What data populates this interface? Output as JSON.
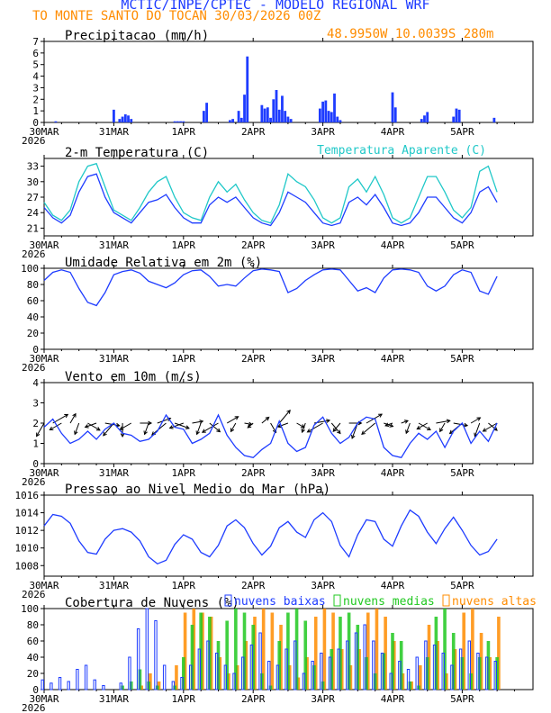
{
  "header": {
    "title": "MCTIC/INPE/CPTEC - MODELO REGIONAL WRF",
    "subtitle": "TO MONTE SANTO DO TOCAN   30/03/2026 00Z",
    "coords": "48.9950W 10.0039S 280m"
  },
  "time_axis": {
    "labels": [
      "30MAR",
      "31MAR",
      "1APR",
      "2APR",
      "3APR",
      "4APR",
      "5APR"
    ],
    "year": "2026",
    "hours_total": 156
  },
  "colors": {
    "blue": "#1e3cff",
    "cyan": "#20c8c8",
    "orange": "#ff8c00",
    "green": "#20c820",
    "black": "#000000"
  },
  "chart_data": [
    {
      "type": "bar",
      "id": "precip",
      "title": "Precipitacao (mm/h)",
      "ylim": [
        0,
        7
      ],
      "yticks": [
        0,
        1,
        2,
        3,
        4,
        5,
        6,
        7
      ],
      "hours": [
        4,
        24,
        26,
        27,
        28,
        29,
        30,
        45,
        46,
        47,
        48,
        55,
        56,
        64,
        65,
        67,
        68,
        69,
        70,
        75,
        76,
        77,
        78,
        79,
        80,
        81,
        82,
        83,
        84,
        85,
        95,
        96,
        97,
        98,
        99,
        100,
        101,
        102,
        120,
        121,
        130,
        131,
        132,
        141,
        142,
        143,
        155
      ],
      "values": [
        0.1,
        1.1,
        0.3,
        0.5,
        0.7,
        0.6,
        0.3,
        0.1,
        0.1,
        0.1,
        0.1,
        1.0,
        1.7,
        0.2,
        0.3,
        1.0,
        0.4,
        2.4,
        5.7,
        1.5,
        1.2,
        1.3,
        0.4,
        2.0,
        2.8,
        1.1,
        2.3,
        1.0,
        0.5,
        0.3,
        1.2,
        1.8,
        1.9,
        1.0,
        0.9,
        2.5,
        0.5,
        0.2,
        2.6,
        1.3,
        0.3,
        0.6,
        0.9,
        0.5,
        1.2,
        1.1,
        0.4
      ],
      "series_color": "blue"
    },
    {
      "type": "line",
      "id": "temp",
      "title": "2-m Temperatura (C)",
      "title2": "Temperatura Aparente (C)",
      "ylim": [
        19.5,
        34.5
      ],
      "yticks": [
        21,
        24,
        27,
        30,
        33
      ],
      "hours": [
        0,
        3,
        6,
        9,
        12,
        15,
        18,
        21,
        24,
        27,
        30,
        33,
        36,
        39,
        42,
        45,
        48,
        51,
        54,
        57,
        60,
        63,
        66,
        69,
        72,
        75,
        78,
        81,
        84,
        87,
        90,
        93,
        96,
        99,
        102,
        105,
        108,
        111,
        114,
        117,
        120,
        123,
        126,
        129,
        132,
        135,
        138,
        141,
        144,
        147,
        150,
        153,
        156
      ],
      "series": [
        {
          "name": "2-m Temperatura",
          "color": "blue",
          "values": [
            25.0,
            23.0,
            22.0,
            23.5,
            28.0,
            31.0,
            31.5,
            27.0,
            24.0,
            23.0,
            22.0,
            24.0,
            26.0,
            26.5,
            27.5,
            25.0,
            23.0,
            22.0,
            22.0,
            25.5,
            27.0,
            26.0,
            27.0,
            25.0,
            23.0,
            22.0,
            21.5,
            24.0,
            28.0,
            27.0,
            26.0,
            24.0,
            22.0,
            21.5,
            22.0,
            26.0,
            27.0,
            25.5,
            27.5,
            25.0,
            22.0,
            21.5,
            22.0,
            24.0,
            27.0,
            27.0,
            25.0,
            23.0,
            22.0,
            24.0,
            28.0,
            29.0,
            26.0
          ]
        },
        {
          "name": "Temperatura Aparente",
          "color": "cyan",
          "values": [
            26.0,
            23.5,
            22.5,
            24.5,
            30.0,
            33.0,
            33.5,
            29.0,
            24.5,
            23.5,
            22.5,
            25.0,
            28.0,
            30.0,
            31.0,
            27.0,
            24.0,
            23.0,
            22.5,
            27.0,
            30.0,
            28.0,
            29.5,
            26.5,
            24.0,
            22.5,
            22.0,
            25.5,
            31.5,
            30.0,
            29.0,
            26.5,
            23.0,
            22.0,
            23.0,
            29.0,
            30.5,
            28.0,
            31.0,
            27.5,
            23.0,
            22.0,
            23.0,
            27.0,
            31.0,
            31.0,
            28.0,
            24.5,
            23.0,
            25.0,
            32.0,
            33.0,
            28.0
          ]
        }
      ]
    },
    {
      "type": "line",
      "id": "rh",
      "title": "Umidade Relativa em 2m (%)",
      "ylim": [
        0,
        100
      ],
      "yticks": [
        0,
        20,
        40,
        60,
        80,
        100
      ],
      "hours": [
        0,
        3,
        6,
        9,
        12,
        15,
        18,
        21,
        24,
        27,
        30,
        33,
        36,
        39,
        42,
        45,
        48,
        51,
        54,
        57,
        60,
        63,
        66,
        69,
        72,
        75,
        78,
        81,
        84,
        87,
        90,
        93,
        96,
        99,
        102,
        105,
        108,
        111,
        114,
        117,
        120,
        123,
        126,
        129,
        132,
        135,
        138,
        141,
        144,
        147,
        150,
        153,
        156
      ],
      "series": [
        {
          "name": "Umidade Relativa",
          "color": "blue",
          "values": [
            85,
            95,
            98,
            95,
            75,
            58,
            54,
            70,
            92,
            96,
            98,
            94,
            84,
            80,
            76,
            82,
            92,
            97,
            98,
            90,
            78,
            80,
            78,
            88,
            97,
            99,
            98,
            96,
            70,
            75,
            85,
            92,
            98,
            99,
            98,
            85,
            72,
            76,
            70,
            88,
            98,
            99,
            98,
            95,
            78,
            72,
            78,
            92,
            98,
            95,
            72,
            68,
            90
          ]
        }
      ]
    },
    {
      "type": "line",
      "id": "wind",
      "title": "Vento em 10m (m/s)",
      "ylim": [
        0,
        4
      ],
      "yticks": [
        0,
        1,
        2,
        3,
        4
      ],
      "hours": [
        0,
        3,
        6,
        9,
        12,
        15,
        18,
        21,
        24,
        27,
        30,
        33,
        36,
        39,
        42,
        45,
        48,
        51,
        54,
        57,
        60,
        63,
        66,
        69,
        72,
        75,
        78,
        81,
        84,
        87,
        90,
        93,
        96,
        99,
        102,
        105,
        108,
        111,
        114,
        117,
        120,
        123,
        126,
        129,
        132,
        135,
        138,
        141,
        144,
        147,
        150,
        153,
        156
      ],
      "arrow_dirs_deg": [
        210,
        60,
        240,
        30,
        200,
        120,
        250,
        100,
        220,
        180,
        240,
        90,
        200,
        70,
        230,
        110,
        250,
        80,
        200,
        130,
        240,
        60,
        210,
        100,
        230,
        50,
        150,
        40,
        250,
        120,
        200,
        80,
        240,
        140,
        220,
        90,
        200,
        60,
        230,
        110,
        250,
        70,
        200,
        120,
        240,
        80,
        210,
        100,
        230,
        60,
        200,
        130,
        240
      ],
      "series": [
        {
          "name": "Vento em 10m",
          "color": "blue",
          "values": [
            1.8,
            2.2,
            1.5,
            1.0,
            1.2,
            1.6,
            1.2,
            1.7,
            2.0,
            1.5,
            1.4,
            1.1,
            1.2,
            1.6,
            2.4,
            1.8,
            1.7,
            1.0,
            1.2,
            1.5,
            2.4,
            1.4,
            0.8,
            0.4,
            0.3,
            0.7,
            1.0,
            2.1,
            1.0,
            0.6,
            0.8,
            1.9,
            2.3,
            1.5,
            1.0,
            1.3,
            2.0,
            2.3,
            2.2,
            0.8,
            0.4,
            0.3,
            1.0,
            1.5,
            1.2,
            1.6,
            0.8,
            1.6,
            2.0,
            1.0,
            1.6,
            1.1,
            2.0
          ]
        }
      ]
    },
    {
      "type": "line",
      "id": "pres",
      "title": "Pressao ao Nivel Medio do Mar (hPa)",
      "ylim": [
        1006.8,
        1016
      ],
      "yticks": [
        1008,
        1010,
        1012,
        1014,
        1016
      ],
      "hours": [
        0,
        3,
        6,
        9,
        12,
        15,
        18,
        21,
        24,
        27,
        30,
        33,
        36,
        39,
        42,
        45,
        48,
        51,
        54,
        57,
        60,
        63,
        66,
        69,
        72,
        75,
        78,
        81,
        84,
        87,
        90,
        93,
        96,
        99,
        102,
        105,
        108,
        111,
        114,
        117,
        120,
        123,
        126,
        129,
        132,
        135,
        138,
        141,
        144,
        147,
        150,
        153,
        156
      ],
      "series": [
        {
          "name": "Pressao",
          "color": "blue",
          "values": [
            1012.5,
            1013.8,
            1013.6,
            1012.8,
            1010.8,
            1009.5,
            1009.3,
            1011.0,
            1012.0,
            1012.2,
            1011.8,
            1010.8,
            1009.0,
            1008.2,
            1008.6,
            1010.4,
            1011.5,
            1011.0,
            1009.5,
            1009.0,
            1010.3,
            1012.5,
            1013.2,
            1012.3,
            1010.5,
            1009.2,
            1010.2,
            1012.3,
            1013.0,
            1011.8,
            1011.2,
            1013.2,
            1014.0,
            1013.0,
            1010.3,
            1009.0,
            1011.5,
            1013.2,
            1013.0,
            1011.0,
            1010.2,
            1012.5,
            1014.3,
            1013.6,
            1011.8,
            1010.5,
            1012.2,
            1013.5,
            1012.0,
            1010.3,
            1009.2,
            1009.6,
            1011.0
          ]
        }
      ]
    },
    {
      "type": "bar",
      "id": "clouds",
      "title": "Cobertura de Nuvens (%)",
      "legend": [
        "nuvens baixas",
        "nuvens medias",
        "nuvens altas"
      ],
      "ylim": [
        0,
        100
      ],
      "yticks": [
        0,
        20,
        40,
        60,
        80,
        100
      ],
      "hours": [
        0,
        3,
        6,
        9,
        12,
        15,
        18,
        21,
        24,
        27,
        30,
        33,
        36,
        39,
        42,
        45,
        48,
        51,
        54,
        57,
        60,
        63,
        66,
        69,
        72,
        75,
        78,
        81,
        84,
        87,
        90,
        93,
        96,
        99,
        102,
        105,
        108,
        111,
        114,
        117,
        120,
        123,
        126,
        129,
        132,
        135,
        138,
        141,
        144,
        147,
        150,
        153,
        156
      ],
      "series": [
        {
          "name": "nuvens baixas",
          "color": "blue",
          "values": [
            12,
            8,
            15,
            10,
            25,
            30,
            12,
            5,
            0,
            8,
            40,
            75,
            100,
            85,
            30,
            10,
            15,
            30,
            50,
            60,
            45,
            30,
            20,
            40,
            55,
            70,
            35,
            30,
            50,
            60,
            20,
            35,
            45,
            40,
            50,
            60,
            70,
            80,
            60,
            45,
            20,
            35,
            25,
            40,
            60,
            55,
            45,
            30,
            50,
            60,
            45,
            40,
            35
          ]
        },
        {
          "name": "nuvens medias",
          "color": "green",
          "values": [
            0,
            0,
            0,
            0,
            0,
            0,
            0,
            0,
            0,
            5,
            10,
            25,
            10,
            5,
            0,
            5,
            40,
            80,
            95,
            90,
            60,
            85,
            100,
            95,
            80,
            20,
            5,
            60,
            95,
            100,
            85,
            30,
            10,
            50,
            90,
            95,
            80,
            40,
            20,
            45,
            70,
            60,
            10,
            5,
            40,
            90,
            100,
            70,
            40,
            20,
            40,
            60,
            40
          ]
        },
        {
          "name": "nuvens altas",
          "color": "orange",
          "values": [
            0,
            0,
            0,
            0,
            0,
            0,
            0,
            0,
            0,
            0,
            0,
            5,
            20,
            10,
            0,
            30,
            95,
            100,
            95,
            90,
            40,
            20,
            30,
            60,
            90,
            100,
            95,
            80,
            30,
            15,
            40,
            90,
            100,
            95,
            50,
            30,
            50,
            95,
            100,
            90,
            60,
            20,
            10,
            30,
            80,
            60,
            20,
            50,
            95,
            100,
            70,
            40,
            90
          ]
        }
      ]
    }
  ]
}
